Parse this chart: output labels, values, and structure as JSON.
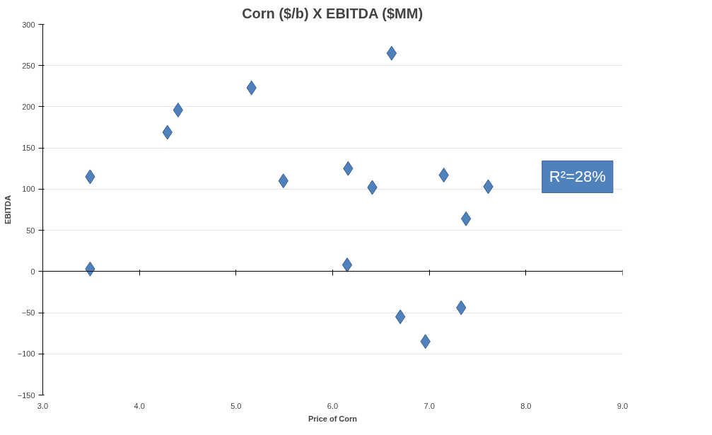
{
  "chart_data": {
    "type": "scatter",
    "title": "Corn ($/b) X EBITDA ($MM)",
    "xlabel": "Price of Corn",
    "ylabel": "EBITDA",
    "x": [
      3.49,
      3.49,
      4.29,
      4.4,
      5.16,
      5.49,
      6.61,
      6.16,
      6.15,
      6.41,
      7.15,
      7.38,
      7.61,
      6.7,
      6.96,
      7.33
    ],
    "series": [
      {
        "color": "#4f81bd",
        "values": [
          115,
          3,
          169,
          196,
          223,
          110,
          265,
          125,
          8,
          102,
          117,
          64,
          103,
          -55,
          -85,
          -44
        ]
      }
    ],
    "xlim": [
      3,
      9
    ],
    "ylim": [
      -150,
      300
    ],
    "xticks": [
      {
        "value": 3,
        "label": "3.0"
      },
      {
        "value": 4,
        "label": "4.0"
      },
      {
        "value": 5,
        "label": "5.0"
      },
      {
        "value": 6,
        "label": "6.0"
      },
      {
        "value": 7,
        "label": "7.0"
      },
      {
        "value": 8,
        "label": "8.0"
      },
      {
        "value": 9,
        "label": "9.0"
      }
    ],
    "yticks": [
      -150,
      -100,
      -50,
      0,
      50,
      100,
      150,
      200,
      250,
      300
    ],
    "grid": "y",
    "marker": "diamond",
    "annotations": [
      "R²=28%"
    ]
  }
}
